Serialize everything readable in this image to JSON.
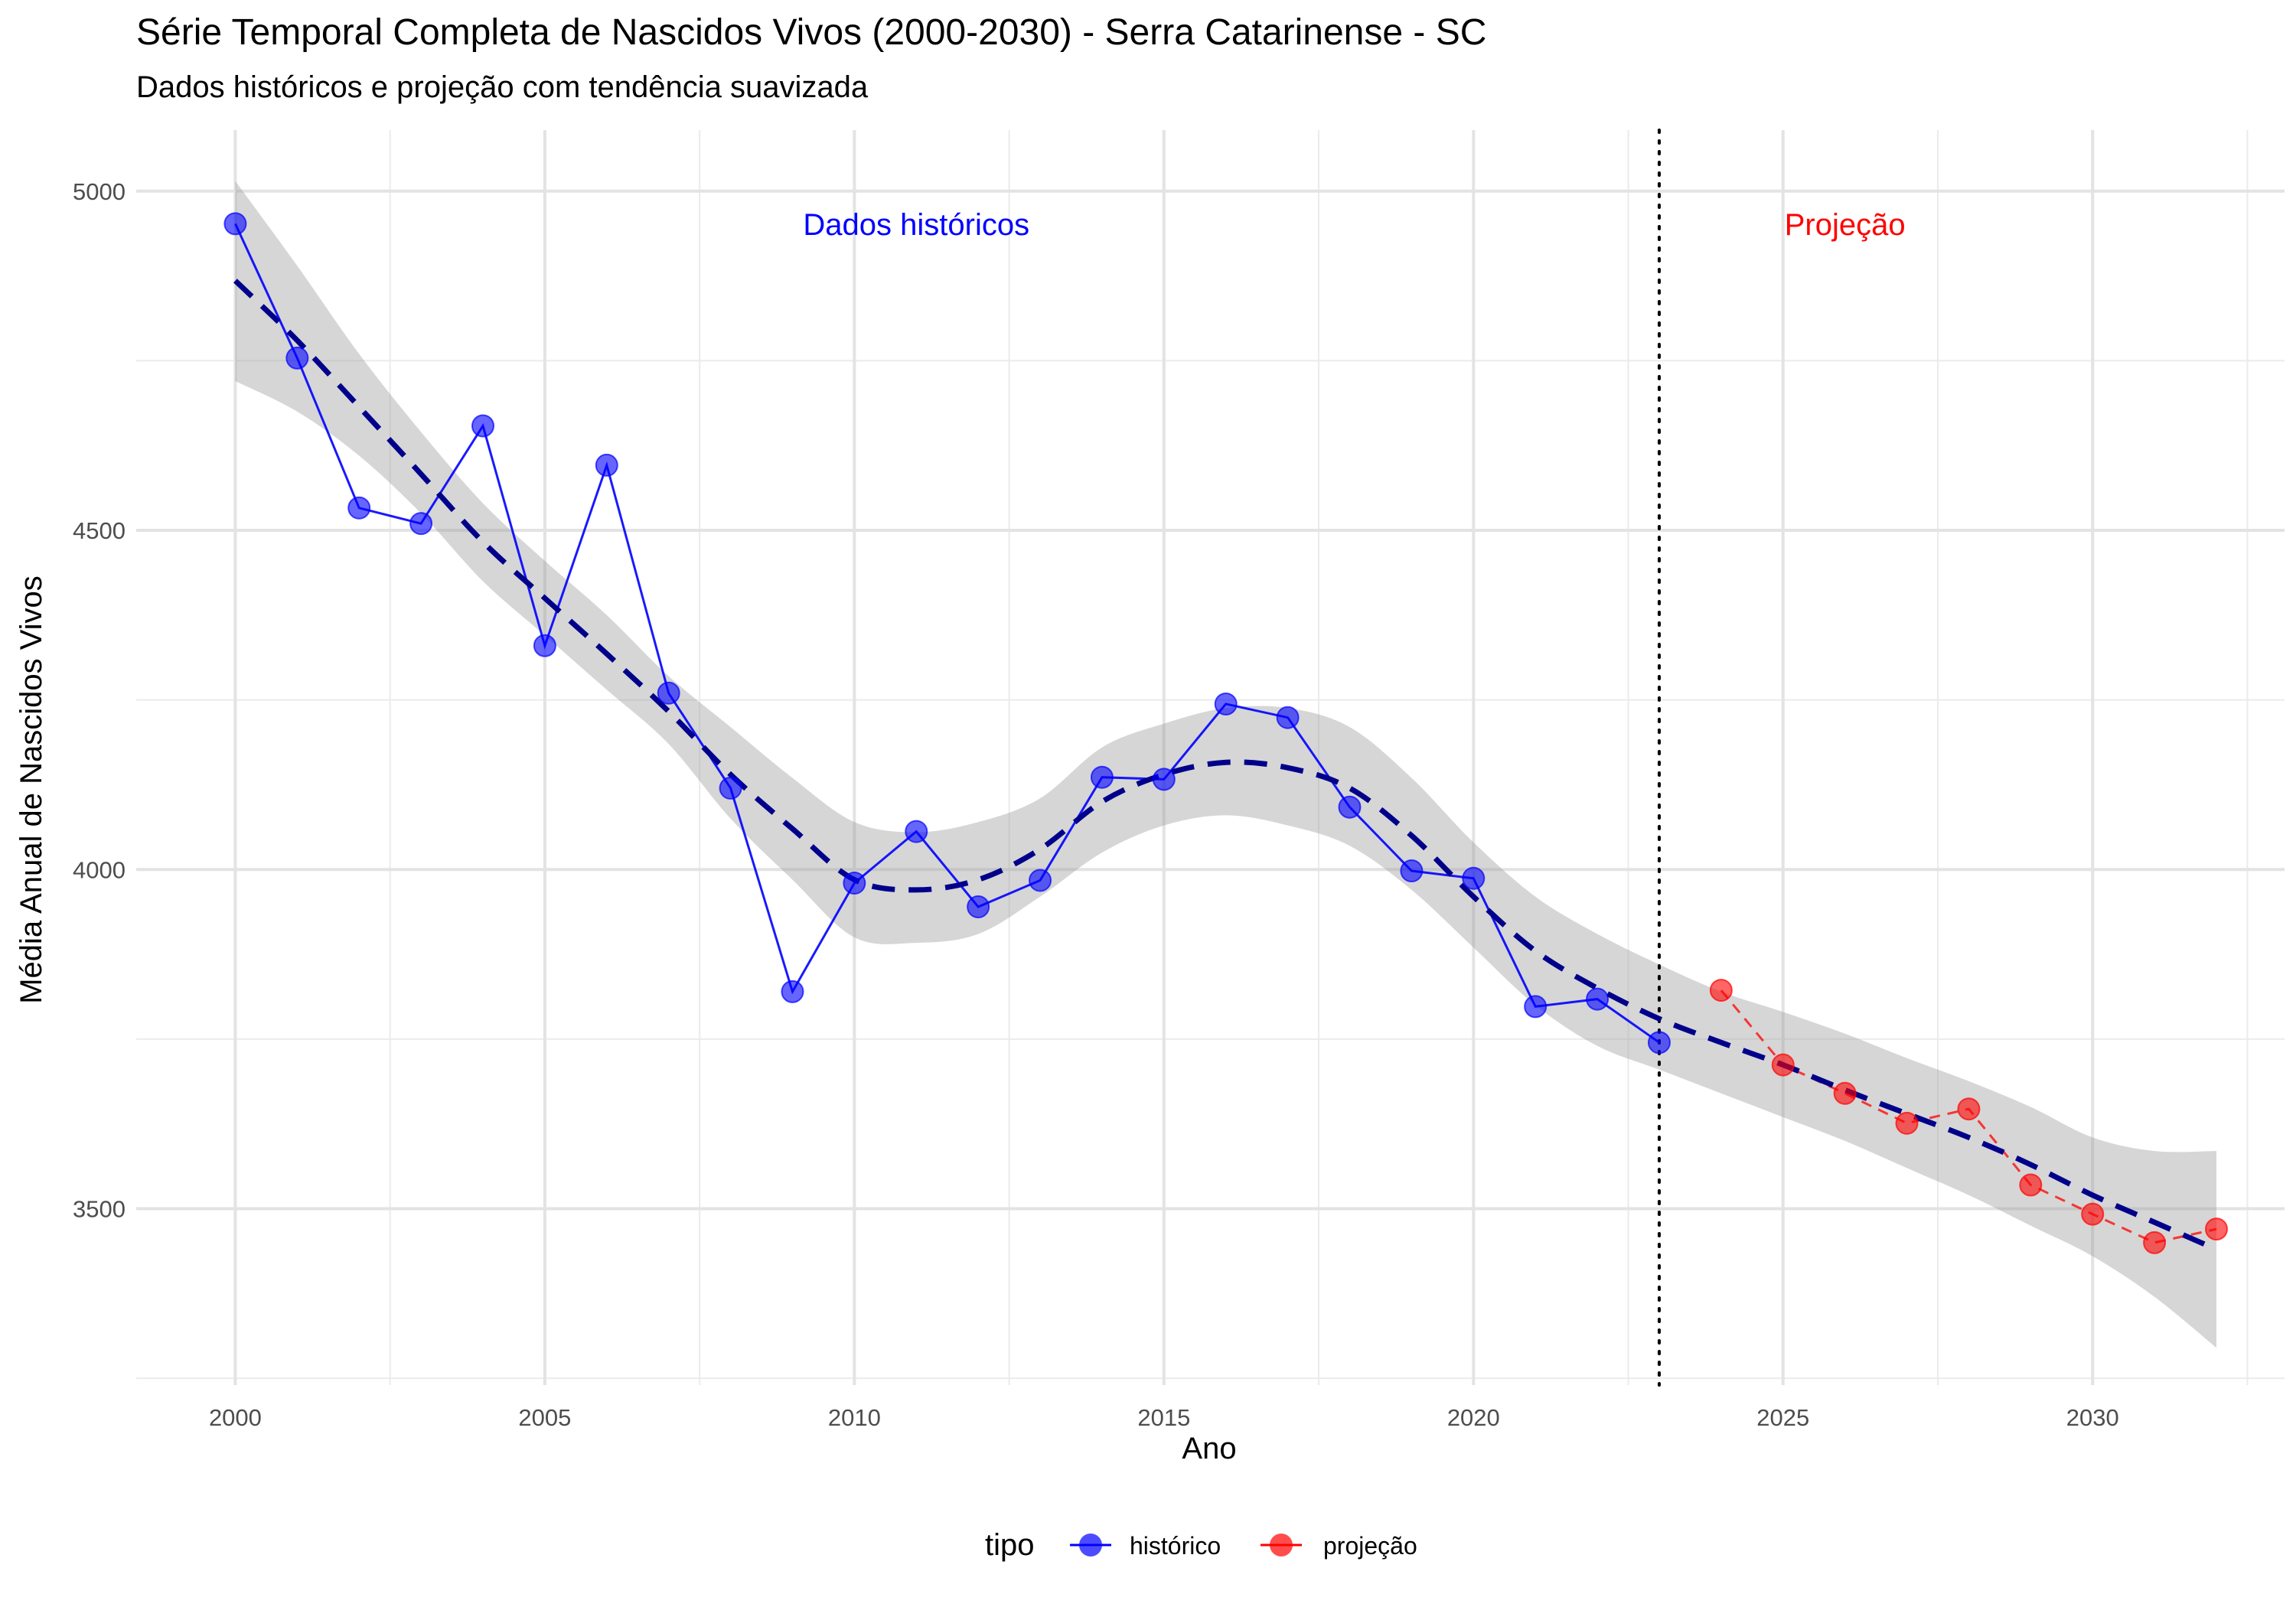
{
  "chart_data": {
    "type": "line",
    "title": "Série Temporal Completa de Nascidos Vivos (2000-2030) -  Serra Catarinense - SC",
    "subtitle": "Dados históricos e projeção com tendência suavizada",
    "xlabel": "Ano",
    "ylabel": "Média Anual de Nascidos Vivos",
    "xlim": [
      1998.4,
      2033.1
    ],
    "ylim": [
      3240,
      5090
    ],
    "x_ticks": [
      2000,
      2005,
      2010,
      2015,
      2020,
      2025,
      2030
    ],
    "y_ticks": [
      3500,
      4000,
      4500,
      5000
    ],
    "grid": true,
    "divider_x": 2023,
    "annotations": [
      {
        "text": "Dados históricos",
        "x": 2011,
        "y": 4950,
        "color": "#0000ff"
      },
      {
        "text": "Projeção",
        "x": 2026,
        "y": 4950,
        "color": "#ff0000"
      }
    ],
    "legend": {
      "title": "tipo",
      "position": "bottom",
      "entries": [
        {
          "label": "histórico",
          "color": "#0000ff"
        },
        {
          "label": "projeção",
          "color": "#ff0000"
        }
      ]
    },
    "series": [
      {
        "name": "histórico",
        "color": "#0000ff",
        "line": "solid",
        "x": [
          2000,
          2001,
          2002,
          2003,
          2004,
          2005,
          2006,
          2007,
          2008,
          2009,
          2010,
          2011,
          2012,
          2013,
          2014,
          2015,
          2016,
          2017,
          2018,
          2019,
          2020,
          2021,
          2022,
          2023
        ],
        "y": [
          4952,
          4754,
          4533,
          4510,
          4654,
          4330,
          4596,
          4260,
          4120,
          3820,
          3980,
          4056,
          3945,
          3984,
          4136,
          4133,
          4244,
          4224,
          4092,
          3998,
          3987,
          3798,
          3809,
          3745
        ]
      },
      {
        "name": "projeção",
        "color": "#ff0000",
        "line": "dashed",
        "x": [
          2024,
          2025,
          2026,
          2027,
          2028,
          2029,
          2030,
          2031,
          2032
        ],
        "y": [
          3822,
          3712,
          3670,
          3626,
          3647,
          3535,
          3492,
          3450,
          3470
        ]
      }
    ],
    "trend": {
      "color": "#00008b",
      "line": "dashed",
      "x": [
        2000,
        2001,
        2002,
        2003,
        2004,
        2005,
        2006,
        2007,
        2008,
        2009,
        2010,
        2011,
        2012,
        2013,
        2014,
        2015,
        2016,
        2017,
        2018,
        2019,
        2020,
        2021,
        2022,
        2023,
        2024,
        2025,
        2026,
        2027,
        2028,
        2029,
        2030,
        2031,
        2032
      ],
      "y": [
        4868,
        4780,
        4682,
        4583,
        4483,
        4400,
        4318,
        4233,
        4140,
        4060,
        3985,
        3970,
        3985,
        4030,
        4100,
        4140,
        4158,
        4150,
        4120,
        4050,
        3960,
        3880,
        3825,
        3780,
        3745,
        3712,
        3675,
        3640,
        3605,
        3565,
        3520,
        3480,
        3440
      ],
      "lower": [
        4720,
        4675,
        4610,
        4525,
        4425,
        4345,
        4265,
        4185,
        4075,
        3985,
        3900,
        3892,
        3905,
        3960,
        4025,
        4065,
        4080,
        4065,
        4035,
        3970,
        3885,
        3800,
        3740,
        3705,
        3670,
        3635,
        3600,
        3560,
        3520,
        3475,
        3430,
        3370,
        3295
      ],
      "upper": [
        5015,
        4890,
        4760,
        4645,
        4540,
        4455,
        4375,
        4285,
        4210,
        4135,
        4070,
        4055,
        4070,
        4105,
        4180,
        4215,
        4238,
        4238,
        4210,
        4135,
        4040,
        3960,
        3905,
        3860,
        3820,
        3790,
        3758,
        3722,
        3688,
        3650,
        3605,
        3585,
        3585
      ]
    }
  }
}
